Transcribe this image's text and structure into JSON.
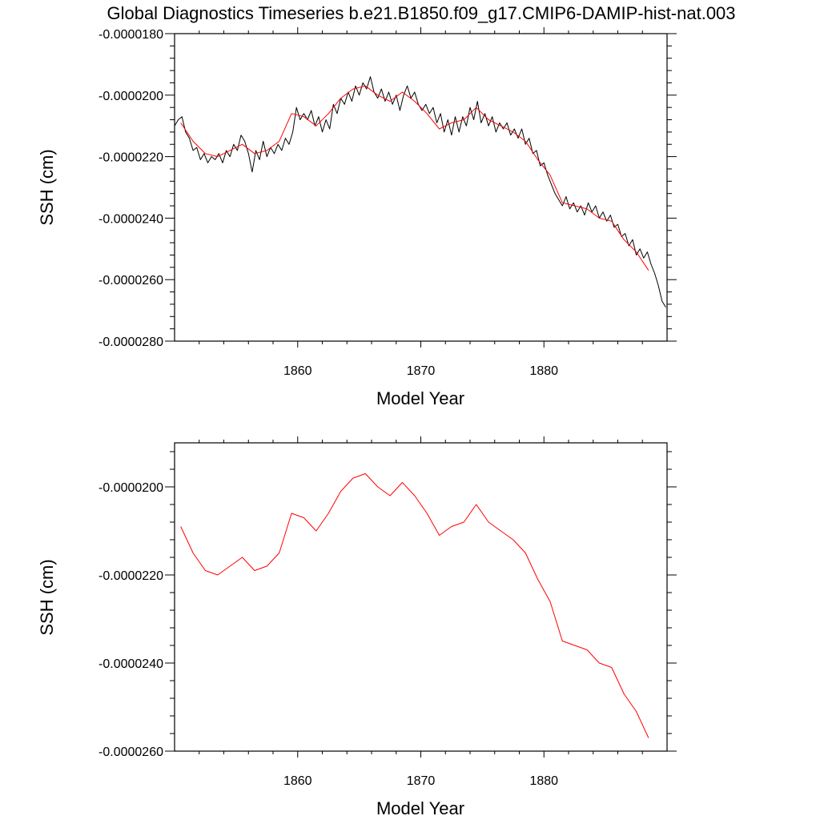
{
  "title": "Global Diagnostics Timeseries b.e21.B1850.f09_g17.CMIP6-DAMIP-hist-nat.003",
  "colors": {
    "annual": "#000000",
    "smoothed": "#ff0000",
    "axes": "#000000"
  },
  "chart_data": [
    {
      "type": "line",
      "xlabel": "Model Year",
      "ylabel": "SSH (cm)",
      "xlim": [
        1850,
        1890
      ],
      "ylim": [
        -2.8e-05,
        -1.8e-05
      ],
      "xticks": [
        1860,
        1870,
        1880
      ],
      "xtick_labels": [
        "1860",
        "1870",
        "1880"
      ],
      "yticks": [
        -1.8e-05,
        -2e-05,
        -2.2e-05,
        -2.4e-05,
        -2.6e-05,
        -2.8e-05
      ],
      "ytick_labels": [
        "-0.0000180",
        "-0.0000200",
        "-0.0000220",
        "-0.0000240",
        "-0.0000260",
        "-0.0000280"
      ],
      "series": [
        {
          "color": "#000000",
          "x": [
            1850.0,
            1850.3,
            1850.6,
            1850.9,
            1851.2,
            1851.5,
            1851.8,
            1852.1,
            1852.4,
            1852.7,
            1853.0,
            1853.3,
            1853.6,
            1853.9,
            1854.2,
            1854.5,
            1854.8,
            1855.1,
            1855.4,
            1855.7,
            1856.0,
            1856.3,
            1856.6,
            1856.9,
            1857.2,
            1857.5,
            1857.8,
            1858.1,
            1858.4,
            1858.7,
            1859.0,
            1859.3,
            1859.6,
            1859.9,
            1860.2,
            1860.5,
            1860.8,
            1861.1,
            1861.4,
            1861.7,
            1862.0,
            1862.3,
            1862.6,
            1862.9,
            1863.2,
            1863.5,
            1863.8,
            1864.1,
            1864.4,
            1864.7,
            1865.0,
            1865.3,
            1865.6,
            1865.9,
            1866.2,
            1866.5,
            1866.8,
            1867.1,
            1867.4,
            1867.7,
            1868.0,
            1868.3,
            1868.6,
            1868.9,
            1869.2,
            1869.5,
            1869.8,
            1870.1,
            1870.4,
            1870.7,
            1871.0,
            1871.3,
            1871.6,
            1871.9,
            1872.2,
            1872.5,
            1872.8,
            1873.1,
            1873.4,
            1873.7,
            1874.0,
            1874.3,
            1874.6,
            1874.9,
            1875.2,
            1875.5,
            1875.8,
            1876.1,
            1876.4,
            1876.7,
            1877.0,
            1877.3,
            1877.6,
            1877.9,
            1878.2,
            1878.5,
            1878.8,
            1879.1,
            1879.4,
            1879.7,
            1880.0,
            1880.3,
            1880.6,
            1880.9,
            1881.2,
            1881.5,
            1881.8,
            1882.1,
            1882.4,
            1882.7,
            1883.0,
            1883.3,
            1883.6,
            1883.9,
            1884.2,
            1884.5,
            1884.8,
            1885.1,
            1885.4,
            1885.7,
            1886.0,
            1886.3,
            1886.6,
            1886.9,
            1887.2,
            1887.5,
            1887.8,
            1888.1,
            1888.4,
            1888.7,
            1889.0,
            1889.3,
            1889.6,
            1889.9
          ],
          "y": [
            -2.1e-05,
            -2.08e-05,
            -2.07e-05,
            -2.12e-05,
            -2.14e-05,
            -2.18e-05,
            -2.17e-05,
            -2.21e-05,
            -2.19e-05,
            -2.22e-05,
            -2.2e-05,
            -2.21e-05,
            -2.19e-05,
            -2.22e-05,
            -2.18e-05,
            -2.2e-05,
            -2.16e-05,
            -2.18e-05,
            -2.13e-05,
            -2.15e-05,
            -2.19e-05,
            -2.25e-05,
            -2.18e-05,
            -2.21e-05,
            -2.15e-05,
            -2.2e-05,
            -2.17e-05,
            -2.19e-05,
            -2.16e-05,
            -2.18e-05,
            -2.14e-05,
            -2.16e-05,
            -2.12e-05,
            -2.04e-05,
            -2.08e-05,
            -2.06e-05,
            -2.08e-05,
            -2.05e-05,
            -2.1e-05,
            -2.07e-05,
            -2.12e-05,
            -2.08e-05,
            -2.11e-05,
            -2.03e-05,
            -2.06e-05,
            -2.01e-05,
            -2.03e-05,
            -1.99e-05,
            -2.02e-05,
            -1.97e-05,
            -2e-05,
            -1.96e-05,
            -1.98e-05,
            -1.94e-05,
            -1.99e-05,
            -2.01e-05,
            -1.98e-05,
            -2.02e-05,
            -1.99e-05,
            -2.03e-05,
            -2e-05,
            -2.05e-05,
            -2e-05,
            -1.97e-05,
            -2.01e-05,
            -1.99e-05,
            -2.03e-05,
            -2.05e-05,
            -2.03e-05,
            -2.06e-05,
            -2.04e-05,
            -2.09e-05,
            -2.06e-05,
            -2.12e-05,
            -2.08e-05,
            -2.13e-05,
            -2.07e-05,
            -2.12e-05,
            -2.07e-05,
            -2.1e-05,
            -2.04e-05,
            -2.08e-05,
            -2.02e-05,
            -2.09e-05,
            -2.06e-05,
            -2.1e-05,
            -2.07e-05,
            -2.12e-05,
            -2.09e-05,
            -2.11e-05,
            -2.09e-05,
            -2.13e-05,
            -2.11e-05,
            -2.14e-05,
            -2.11e-05,
            -2.16e-05,
            -2.14e-05,
            -2.19e-05,
            -2.18e-05,
            -2.23e-05,
            -2.22e-05,
            -2.26e-05,
            -2.29e-05,
            -2.32e-05,
            -2.34e-05,
            -2.36e-05,
            -2.33e-05,
            -2.37e-05,
            -2.35e-05,
            -2.38e-05,
            -2.36e-05,
            -2.39e-05,
            -2.35e-05,
            -2.38e-05,
            -2.36e-05,
            -2.4e-05,
            -2.38e-05,
            -2.41e-05,
            -2.39e-05,
            -2.43e-05,
            -2.42e-05,
            -2.46e-05,
            -2.45e-05,
            -2.49e-05,
            -2.47e-05,
            -2.52e-05,
            -2.5e-05,
            -2.53e-05,
            -2.51e-05,
            -2.55e-05,
            -2.58e-05,
            -2.62e-05,
            -2.67e-05,
            -2.69e-05
          ]
        },
        {
          "color": "#ff0000",
          "x": [
            1850.5,
            1851.5,
            1852.5,
            1853.5,
            1854.5,
            1855.5,
            1856.5,
            1857.5,
            1858.5,
            1859.5,
            1860.5,
            1861.5,
            1862.5,
            1863.5,
            1864.5,
            1865.5,
            1866.5,
            1867.5,
            1868.5,
            1869.5,
            1870.5,
            1871.5,
            1872.5,
            1873.5,
            1874.5,
            1875.5,
            1876.5,
            1877.5,
            1878.5,
            1879.5,
            1880.5,
            1881.5,
            1882.5,
            1883.5,
            1884.5,
            1885.5,
            1886.5,
            1887.5,
            1888.5
          ],
          "y": [
            -2.09e-05,
            -2.15e-05,
            -2.19e-05,
            -2.2e-05,
            -2.18e-05,
            -2.16e-05,
            -2.19e-05,
            -2.18e-05,
            -2.15e-05,
            -2.06e-05,
            -2.07e-05,
            -2.1e-05,
            -2.06e-05,
            -2.01e-05,
            -1.98e-05,
            -1.97e-05,
            -2e-05,
            -2.02e-05,
            -1.99e-05,
            -2.02e-05,
            -2.06e-05,
            -2.11e-05,
            -2.09e-05,
            -2.08e-05,
            -2.04e-05,
            -2.08e-05,
            -2.1e-05,
            -2.12e-05,
            -2.15e-05,
            -2.21e-05,
            -2.26e-05,
            -2.35e-05,
            -2.36e-05,
            -2.37e-05,
            -2.4e-05,
            -2.41e-05,
            -2.47e-05,
            -2.51e-05,
            -2.57e-05
          ]
        }
      ]
    },
    {
      "type": "line",
      "xlabel": "Model Year",
      "ylabel": "SSH (cm)",
      "xlim": [
        1850,
        1890
      ],
      "ylim": [
        -2.6e-05,
        -1.9e-05
      ],
      "xticks": [
        1860,
        1870,
        1880
      ],
      "xtick_labels": [
        "1860",
        "1870",
        "1880"
      ],
      "yticks": [
        -2e-05,
        -2.2e-05,
        -2.4e-05,
        -2.6e-05
      ],
      "ytick_labels": [
        "-0.0000200",
        "-0.0000220",
        "-0.0000240",
        "-0.0000260"
      ],
      "series": [
        {
          "color": "#ff0000",
          "x": [
            1850.5,
            1851.5,
            1852.5,
            1853.5,
            1854.5,
            1855.5,
            1856.5,
            1857.5,
            1858.5,
            1859.5,
            1860.5,
            1861.5,
            1862.5,
            1863.5,
            1864.5,
            1865.5,
            1866.5,
            1867.5,
            1868.5,
            1869.5,
            1870.5,
            1871.5,
            1872.5,
            1873.5,
            1874.5,
            1875.5,
            1876.5,
            1877.5,
            1878.5,
            1879.5,
            1880.5,
            1881.5,
            1882.5,
            1883.5,
            1884.5,
            1885.5,
            1886.5,
            1887.5,
            1888.5
          ],
          "y": [
            -2.09e-05,
            -2.15e-05,
            -2.19e-05,
            -2.2e-05,
            -2.18e-05,
            -2.16e-05,
            -2.19e-05,
            -2.18e-05,
            -2.15e-05,
            -2.06e-05,
            -2.07e-05,
            -2.1e-05,
            -2.06e-05,
            -2.01e-05,
            -1.98e-05,
            -1.97e-05,
            -2e-05,
            -2.02e-05,
            -1.99e-05,
            -2.02e-05,
            -2.06e-05,
            -2.11e-05,
            -2.09e-05,
            -2.08e-05,
            -2.04e-05,
            -2.08e-05,
            -2.1e-05,
            -2.12e-05,
            -2.15e-05,
            -2.21e-05,
            -2.26e-05,
            -2.35e-05,
            -2.36e-05,
            -2.37e-05,
            -2.4e-05,
            -2.41e-05,
            -2.47e-05,
            -2.51e-05,
            -2.57e-05
          ]
        }
      ]
    }
  ]
}
